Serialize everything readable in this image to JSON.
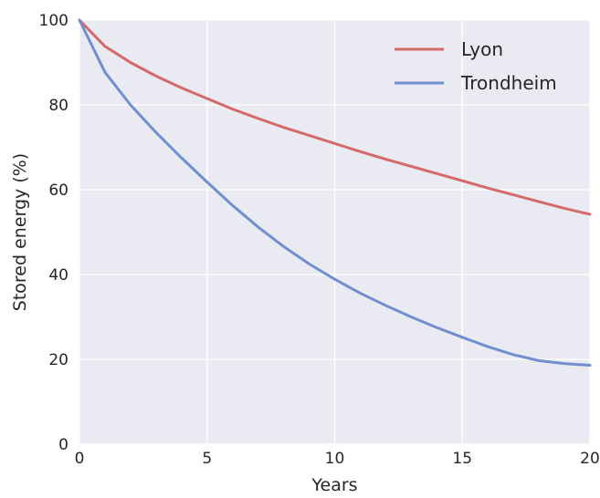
{
  "chart_data": {
    "type": "line",
    "title": "",
    "xlabel": "Years",
    "ylabel": "Stored energy (%)",
    "xlim": [
      0,
      20
    ],
    "ylim": [
      0,
      100
    ],
    "xticks": [
      0,
      5,
      10,
      15,
      20
    ],
    "yticks": [
      0,
      20,
      40,
      60,
      80,
      100
    ],
    "grid": true,
    "legend_position": "top-right",
    "background": "#eaeaf2",
    "x": [
      0,
      1,
      2,
      3,
      4,
      5,
      6,
      7,
      8,
      9,
      10,
      11,
      12,
      13,
      14,
      15,
      16,
      17,
      18,
      19,
      20
    ],
    "series": [
      {
        "name": "Lyon",
        "color": "#d46a6a",
        "values": [
          100,
          93.8,
          90.0,
          86.8,
          84.0,
          81.5,
          79.0,
          76.8,
          74.7,
          72.8,
          70.9,
          69.0,
          67.2,
          65.5,
          63.8,
          62.1,
          60.4,
          58.8,
          57.2,
          55.6,
          54.2
        ]
      },
      {
        "name": "Trondheim",
        "color": "#6f8fcf",
        "values": [
          100,
          87.7,
          80.0,
          73.5,
          67.5,
          61.8,
          56.3,
          51.2,
          46.6,
          42.5,
          38.9,
          35.6,
          32.7,
          30.0,
          27.5,
          25.2,
          23.0,
          21.1,
          19.7,
          19.0,
          18.6
        ]
      }
    ]
  }
}
